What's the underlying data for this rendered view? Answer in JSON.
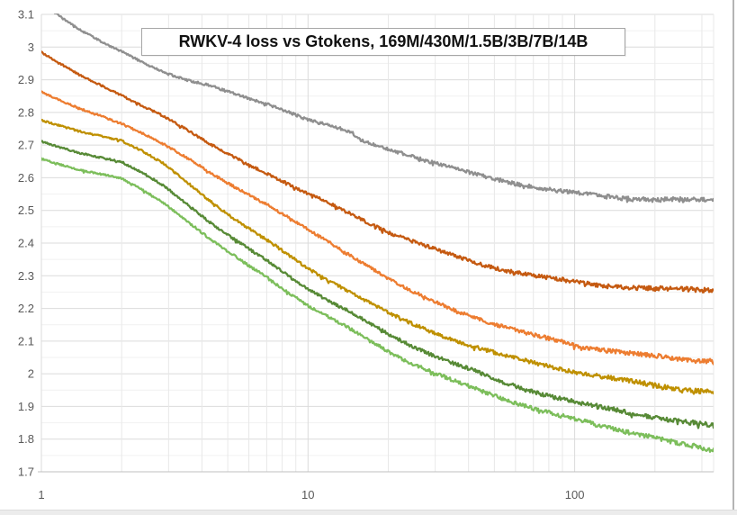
{
  "chart_data": {
    "type": "line",
    "title": "RWKV-4 loss vs Gtokens, 169M/430M/1.5B/3B/7B/14B",
    "xlabel": "",
    "ylabel": "",
    "x_scale": "log",
    "xlim": [
      1,
      332
    ],
    "ylim": [
      1.7,
      3.1
    ],
    "x_tick_values": [
      1,
      10,
      100
    ],
    "x_tick_labels": [
      "1",
      "10",
      "100"
    ],
    "y_tick_step": 0.1,
    "y_minor_step": 0.05,
    "grid": "on",
    "legend": "none",
    "axis_label_color": "#595959",
    "colors": {
      "major_grid": "#dbdbdb",
      "minor_grid_h": "#f1f1f1",
      "minor_grid_v": "#e8e8e8",
      "x_axis_line": "#bfbfbf"
    },
    "series": [
      {
        "name": "169M",
        "color": "#8f8f8f",
        "points": [
          [
            1,
            3.135
          ],
          [
            1.2,
            3.09
          ],
          [
            1.4,
            3.053
          ],
          [
            1.7,
            3.014
          ],
          [
            2,
            2.985
          ],
          [
            2.4,
            2.952
          ],
          [
            2.9,
            2.922
          ],
          [
            3.5,
            2.9
          ],
          [
            4.2,
            2.885
          ],
          [
            5,
            2.863
          ],
          [
            6,
            2.842
          ],
          [
            7,
            2.826
          ],
          [
            8.5,
            2.802
          ],
          [
            10,
            2.778
          ],
          [
            11.5,
            2.764
          ],
          [
            13,
            2.751
          ],
          [
            14.5,
            2.739
          ],
          [
            15.6,
            2.716
          ],
          [
            17,
            2.705
          ],
          [
            20,
            2.689
          ],
          [
            24,
            2.669
          ],
          [
            28,
            2.652
          ],
          [
            34,
            2.632
          ],
          [
            42,
            2.611
          ],
          [
            50,
            2.597
          ],
          [
            60,
            2.583
          ],
          [
            70,
            2.573
          ],
          [
            85,
            2.561
          ],
          [
            100,
            2.552
          ],
          [
            120,
            2.545
          ],
          [
            150,
            2.539
          ],
          [
            180,
            2.535
          ],
          [
            220,
            2.533
          ],
          [
            260,
            2.532
          ],
          [
            300,
            2.531
          ],
          [
            332,
            2.53
          ]
        ]
      },
      {
        "name": "430M",
        "color": "#c55a11",
        "points": [
          [
            1,
            2.985
          ],
          [
            1.2,
            2.946
          ],
          [
            1.4,
            2.913
          ],
          [
            1.7,
            2.879
          ],
          [
            2,
            2.851
          ],
          [
            2.4,
            2.82
          ],
          [
            2.9,
            2.788
          ],
          [
            3.5,
            2.748
          ],
          [
            4.2,
            2.706
          ],
          [
            5,
            2.672
          ],
          [
            6,
            2.64
          ],
          [
            7,
            2.614
          ],
          [
            8.5,
            2.58
          ],
          [
            10,
            2.551
          ],
          [
            12,
            2.521
          ],
          [
            14,
            2.494
          ],
          [
            17,
            2.461
          ],
          [
            20,
            2.434
          ],
          [
            24,
            2.409
          ],
          [
            28,
            2.389
          ],
          [
            34,
            2.365
          ],
          [
            42,
            2.342
          ],
          [
            50,
            2.325
          ],
          [
            60,
            2.311
          ],
          [
            70,
            2.3
          ],
          [
            85,
            2.289
          ],
          [
            100,
            2.281
          ],
          [
            120,
            2.273
          ],
          [
            150,
            2.266
          ],
          [
            180,
            2.262
          ],
          [
            220,
            2.259
          ],
          [
            260,
            2.258
          ],
          [
            300,
            2.257
          ],
          [
            332,
            2.256
          ]
        ]
      },
      {
        "name": "1.5B",
        "color": "#ed7d31",
        "points": [
          [
            1,
            2.863
          ],
          [
            1.2,
            2.833
          ],
          [
            1.4,
            2.81
          ],
          [
            1.7,
            2.787
          ],
          [
            2,
            2.766
          ],
          [
            2.4,
            2.736
          ],
          [
            2.9,
            2.701
          ],
          [
            3.5,
            2.661
          ],
          [
            4.2,
            2.62
          ],
          [
            5,
            2.584
          ],
          [
            6,
            2.549
          ],
          [
            7,
            2.519
          ],
          [
            8.5,
            2.476
          ],
          [
            10,
            2.44
          ],
          [
            12,
            2.402
          ],
          [
            14,
            2.369
          ],
          [
            17,
            2.327
          ],
          [
            20,
            2.291
          ],
          [
            24,
            2.256
          ],
          [
            28,
            2.231
          ],
          [
            34,
            2.201
          ],
          [
            42,
            2.173
          ],
          [
            50,
            2.152
          ],
          [
            60,
            2.133
          ],
          [
            70,
            2.118
          ],
          [
            85,
            2.102
          ],
          [
            100,
            2.089
          ],
          [
            120,
            2.077
          ],
          [
            150,
            2.065
          ],
          [
            180,
            2.057
          ],
          [
            220,
            2.05
          ],
          [
            260,
            2.045
          ],
          [
            300,
            2.042
          ],
          [
            332,
            2.04
          ]
        ]
      },
      {
        "name": "3B",
        "color": "#bf9000",
        "points": [
          [
            1,
            2.775
          ],
          [
            1.2,
            2.756
          ],
          [
            1.4,
            2.741
          ],
          [
            1.7,
            2.727
          ],
          [
            2,
            2.714
          ],
          [
            2.4,
            2.681
          ],
          [
            2.9,
            2.64
          ],
          [
            3.5,
            2.587
          ],
          [
            4.2,
            2.535
          ],
          [
            5,
            2.489
          ],
          [
            6,
            2.445
          ],
          [
            7,
            2.409
          ],
          [
            8.5,
            2.361
          ],
          [
            10,
            2.322
          ],
          [
            12,
            2.285
          ],
          [
            14,
            2.256
          ],
          [
            17,
            2.218
          ],
          [
            20,
            2.186
          ],
          [
            24,
            2.156
          ],
          [
            28,
            2.134
          ],
          [
            34,
            2.108
          ],
          [
            42,
            2.083
          ],
          [
            50,
            2.064
          ],
          [
            60,
            2.047
          ],
          [
            70,
            2.034
          ],
          [
            85,
            2.019
          ],
          [
            100,
            2.007
          ],
          [
            120,
            1.994
          ],
          [
            150,
            1.981
          ],
          [
            180,
            1.971
          ],
          [
            220,
            1.96
          ],
          [
            260,
            1.953
          ],
          [
            300,
            1.947
          ],
          [
            332,
            1.943
          ]
        ]
      },
      {
        "name": "7B",
        "color": "#578a36",
        "points": [
          [
            1,
            2.71
          ],
          [
            1.2,
            2.691
          ],
          [
            1.4,
            2.676
          ],
          [
            1.7,
            2.661
          ],
          [
            2,
            2.648
          ],
          [
            2.4,
            2.614
          ],
          [
            2.9,
            2.573
          ],
          [
            3.5,
            2.521
          ],
          [
            4.2,
            2.47
          ],
          [
            5,
            2.425
          ],
          [
            6,
            2.381
          ],
          [
            7,
            2.346
          ],
          [
            8.5,
            2.298
          ],
          [
            10,
            2.26
          ],
          [
            12,
            2.223
          ],
          [
            14,
            2.194
          ],
          [
            17,
            2.154
          ],
          [
            20,
            2.121
          ],
          [
            24,
            2.089
          ],
          [
            28,
            2.065
          ],
          [
            34,
            2.037
          ],
          [
            42,
            2.009
          ],
          [
            50,
            1.982
          ],
          [
            60,
            1.962
          ],
          [
            70,
            1.946
          ],
          [
            85,
            1.928
          ],
          [
            100,
            1.914
          ],
          [
            120,
            1.9
          ],
          [
            150,
            1.885
          ],
          [
            180,
            1.873
          ],
          [
            220,
            1.861
          ],
          [
            260,
            1.852
          ],
          [
            300,
            1.845
          ],
          [
            332,
            1.84
          ]
        ]
      },
      {
        "name": "14B",
        "color": "#7cbe5b",
        "points": [
          [
            1,
            2.658
          ],
          [
            1.2,
            2.639
          ],
          [
            1.4,
            2.624
          ],
          [
            1.7,
            2.609
          ],
          [
            2,
            2.596
          ],
          [
            2.4,
            2.562
          ],
          [
            2.9,
            2.521
          ],
          [
            3.5,
            2.469
          ],
          [
            4.2,
            2.419
          ],
          [
            5,
            2.374
          ],
          [
            6,
            2.33
          ],
          [
            7,
            2.295
          ],
          [
            8.5,
            2.247
          ],
          [
            10,
            2.209
          ],
          [
            12,
            2.172
          ],
          [
            14,
            2.142
          ],
          [
            17,
            2.102
          ],
          [
            20,
            2.069
          ],
          [
            24,
            2.036
          ],
          [
            28,
            2.012
          ],
          [
            34,
            1.983
          ],
          [
            42,
            1.955
          ],
          [
            50,
            1.933
          ],
          [
            60,
            1.912
          ],
          [
            70,
            1.895
          ],
          [
            85,
            1.875
          ],
          [
            100,
            1.86
          ],
          [
            120,
            1.844
          ],
          [
            150,
            1.827
          ],
          [
            180,
            1.814
          ],
          [
            220,
            1.795
          ],
          [
            260,
            1.782
          ],
          [
            300,
            1.772
          ],
          [
            332,
            1.766
          ]
        ]
      }
    ]
  }
}
